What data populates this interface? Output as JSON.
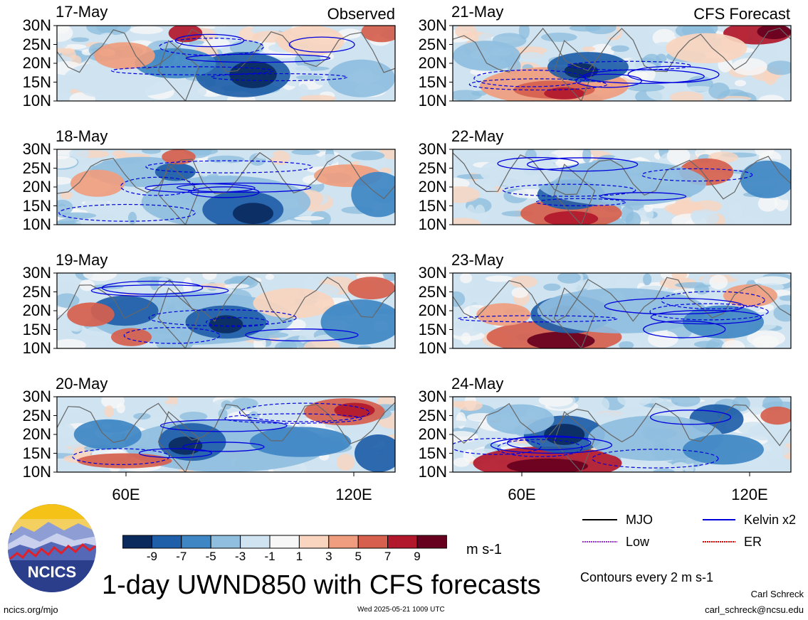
{
  "map": {
    "title": "1-day UWND850 with CFS forecasts",
    "observed_label": "Observed",
    "forecast_label": "CFS Forecast",
    "observed_dates": [
      "17-May",
      "18-May",
      "19-May",
      "20-May"
    ],
    "forecast_dates": [
      "21-May",
      "22-May",
      "23-May",
      "24-May"
    ],
    "lat_labels": [
      "30N",
      "25N",
      "20N",
      "15N",
      "10N"
    ],
    "lon_labels": [
      "60E",
      "120E"
    ],
    "region": {
      "lon_range": [
        40,
        130
      ],
      "lat_range": [
        10,
        30
      ]
    }
  },
  "colorbar": {
    "levels": [
      "-9",
      "-7",
      "-5",
      "-3",
      "-1",
      "1",
      "3",
      "5",
      "7",
      "9"
    ],
    "colors": [
      "#0a2a5e",
      "#1f5ea8",
      "#3f87c4",
      "#8fbedf",
      "#cfe3f1",
      "#f7f7f7",
      "#f9d5bf",
      "#ef9d7e",
      "#d6604d",
      "#b2182b",
      "#67001f"
    ],
    "unit": "m s-1"
  },
  "legend": {
    "items": [
      {
        "label": "MJO",
        "color": "#000000"
      },
      {
        "label": "Kelvin x2",
        "color": "#0000dd"
      },
      {
        "label": "Low",
        "color": "#9b30d0"
      },
      {
        "label": "ER",
        "color": "#e00000"
      }
    ],
    "contour_note": "Contours every 2 m s-1"
  },
  "logo": {
    "text": "NCICS"
  },
  "footer": {
    "url": "ncics.org/mjo",
    "timestamp": "Wed 2025-05-21 1009 UTC",
    "author": "Carl Schreck",
    "email": "carl_schreck@ncsu.edu"
  }
}
